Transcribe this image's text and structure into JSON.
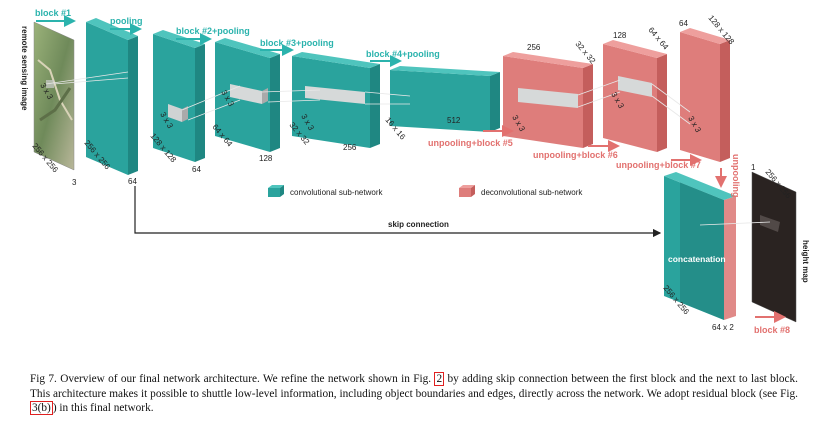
{
  "blocks": {
    "b1": "block #1",
    "pool": "pooling",
    "b2": "block #2+pooling",
    "b3": "block #3+pooling",
    "b4": "block #4+pooling",
    "b5": "unpooling+block #5",
    "b6": "unpooling+block #6",
    "b7": "unpooling+block #7",
    "unpool": "unpooling",
    "b8": "block #8"
  },
  "labels": {
    "input": "remote sensing image",
    "output": "height map",
    "skip": "skip connection",
    "concat": "concatenation",
    "in_size": "256 x 256",
    "in_ch": "3",
    "p_size": "256 x 256",
    "p_ch": "64",
    "b2_size": "128 x 128",
    "b2_ch": "64",
    "b2k": "3 x 3",
    "b3_size": "64 x 64",
    "b3_ch": "128",
    "b3k": "3 x 3",
    "b4_size": "32 x 32",
    "b4_ch": "256",
    "b4k": "3 x 3",
    "b5_size": "16 x 16",
    "b5_ch": "512",
    "r1_ch": "256",
    "r1_size": "32 x 32",
    "r1k": "3 x 3",
    "r2_ch": "128",
    "r2_size": "64 x 64",
    "r2k": "3 x 3",
    "r3_ch": "64",
    "r3_size": "128 x 128",
    "r3k": "3 x 3",
    "in_k": "3 x 3",
    "cc_size": "256 x 256",
    "cc_ch": "64 x 2",
    "out_ch": "1",
    "out_size": "256 x 256"
  },
  "legend": {
    "conv": "convolutional sub-network",
    "deconv": "deconvolutional sub-network"
  },
  "colors": {
    "teal": "#2bb3ad",
    "salmon": "#e2716f"
  },
  "caption": {
    "prefix": "Fig 7.   Overview of our final network architecture. We refine the network shown in Fig.",
    "ref1": "2",
    "mid": "by adding skip connection between the first block and the next to last block. This architecture makes it possible to shuttle low-level information, including object boundaries and edges, directly across the network. We adopt residual block (see Fig.",
    "ref2": "3(b)",
    "suffix": ") in this final network."
  }
}
